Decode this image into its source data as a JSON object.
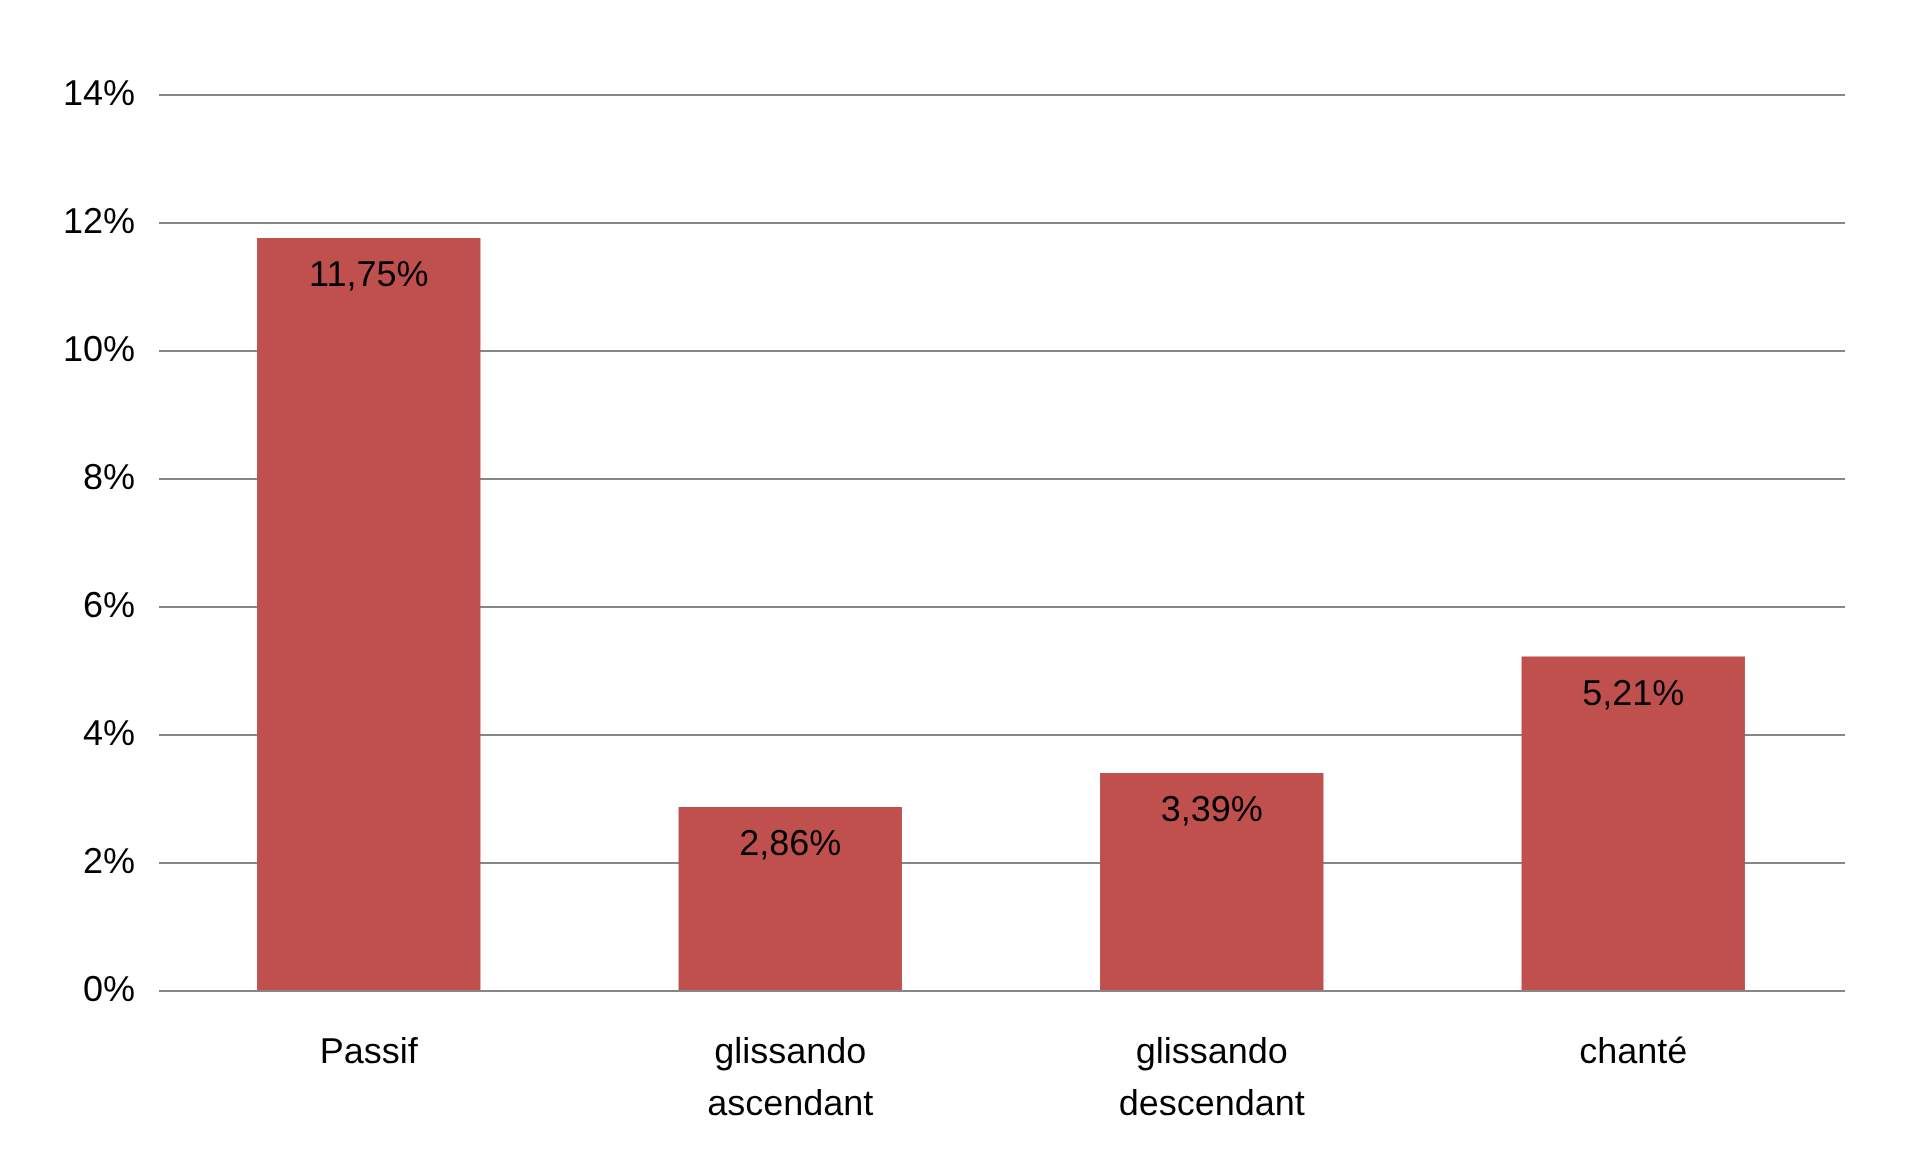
{
  "chart_data": {
    "type": "bar",
    "categories": [
      "Passif",
      "glissando ascendant",
      "glissando descendant",
      "chanté"
    ],
    "values": [
      11.75,
      2.86,
      3.39,
      5.21
    ],
    "color": "#c0504d",
    "value_labels": [
      "11,75%",
      "2,86%",
      "3,39%",
      "5,21%"
    ],
    "ylim": [
      0,
      14
    ],
    "yticks": [
      {
        "value": 0,
        "label": "0%"
      },
      {
        "value": 2,
        "label": "2%"
      },
      {
        "value": 4,
        "label": "4%"
      },
      {
        "value": 6,
        "label": "6%"
      },
      {
        "value": 8,
        "label": "8%"
      },
      {
        "value": 10,
        "label": "10%"
      },
      {
        "value": 12,
        "label": "12%"
      },
      {
        "value": 14,
        "label": "14%"
      }
    ],
    "grid": "y"
  }
}
